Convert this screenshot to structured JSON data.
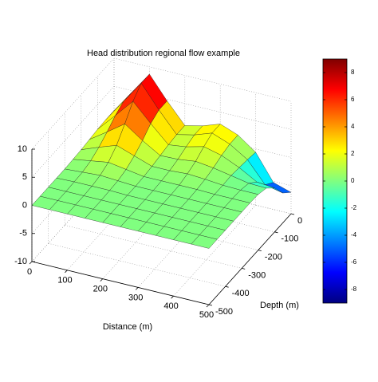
{
  "chart_data": {
    "type": "surface",
    "title": "Head distribution regional flow example",
    "xlabel": "Distance (m)",
    "ylabel": "Depth (m)",
    "x": [
      0,
      50,
      100,
      150,
      200,
      250,
      300,
      350,
      400,
      450,
      500
    ],
    "y": [
      0,
      -50,
      -100,
      -150,
      -200,
      -250,
      -300,
      -350,
      -400,
      -450,
      -500
    ],
    "z": [
      [
        0.7,
        4.7,
        8.7,
        4.7,
        1.1,
        1.8,
        2.9,
        1.7,
        -0.6,
        -5.2,
        -6.2
      ],
      [
        0.7,
        4.7,
        8.7,
        4.7,
        1.1,
        1.8,
        2.9,
        1.7,
        -0.3,
        -4.0,
        -4.7
      ],
      [
        0.6,
        3.8,
        7.1,
        3.9,
        0.9,
        1.3,
        2.1,
        1.3,
        -0.1,
        -1.9,
        -2.2
      ],
      [
        0.4,
        2.5,
        4.7,
        2.5,
        0.6,
        0.7,
        1.1,
        0.7,
        0.1,
        -0.5,
        -0.6
      ],
      [
        0.2,
        1.4,
        2.5,
        1.4,
        0.3,
        0.3,
        0.5,
        0.3,
        0.0,
        -0.1,
        -0.1
      ],
      [
        0.1,
        0.6,
        1.1,
        0.6,
        0.1,
        0.1,
        0.1,
        0.1,
        0.0,
        0.0,
        0.0
      ],
      [
        0.0,
        0.2,
        0.4,
        0.2,
        0.0,
        0.0,
        0.0,
        0.0,
        0.0,
        0.0,
        0.0
      ],
      [
        0.0,
        0.1,
        0.1,
        0.1,
        0.0,
        0.0,
        0.0,
        0.0,
        0.0,
        0.0,
        0.0
      ],
      [
        0.0,
        0.0,
        0.0,
        0.0,
        0.0,
        0.0,
        0.0,
        0.0,
        0.0,
        0.0,
        0.0
      ],
      [
        0.0,
        0.0,
        0.0,
        0.0,
        0.0,
        0.0,
        0.0,
        0.0,
        0.0,
        0.0,
        0.0
      ],
      [
        0.0,
        0.0,
        0.0,
        0.0,
        0.0,
        0.0,
        0.0,
        0.0,
        0.0,
        0.0,
        0.0
      ]
    ],
    "xlim": [
      0,
      500
    ],
    "ylim": [
      -500,
      0
    ],
    "zlim": [
      -10,
      10
    ],
    "xticks": [
      0,
      100,
      200,
      300,
      400,
      500
    ],
    "yticks": [
      0,
      -100,
      -200,
      -300,
      -400,
      -500
    ],
    "zticks": [
      -10,
      -5,
      0,
      5,
      10
    ],
    "colormap": "jet",
    "clim": [
      -9,
      9
    ],
    "cticks": [
      -8,
      -6,
      -4,
      -2,
      0,
      2,
      4,
      6,
      8
    ],
    "grid": true
  }
}
